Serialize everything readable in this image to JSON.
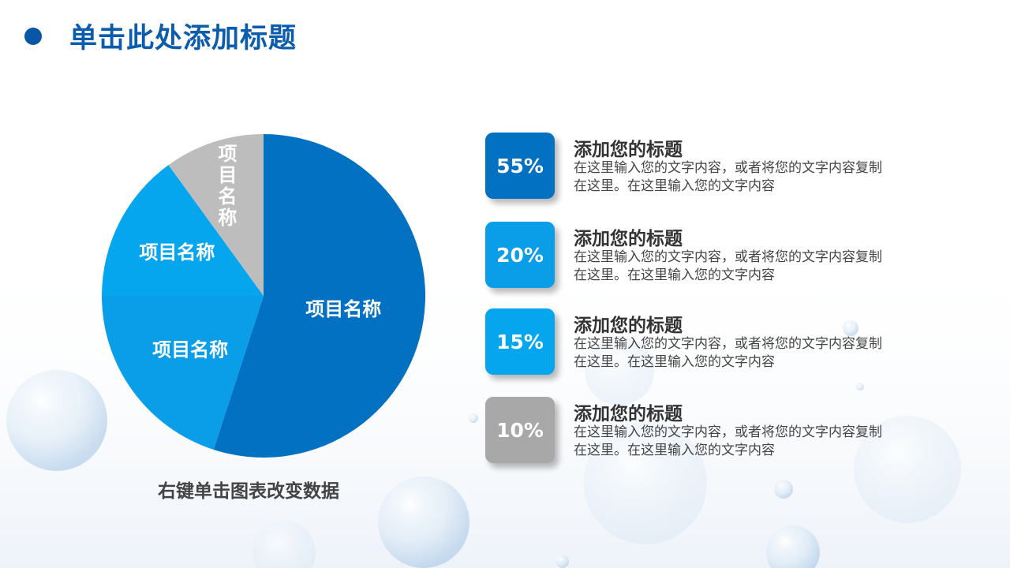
{
  "page": {
    "title": "单击此处添加标题"
  },
  "chart_data": {
    "type": "pie",
    "categories": [
      "项目名称",
      "项目名称",
      "项目名称",
      "项目名称"
    ],
    "values": [
      55,
      20,
      15,
      10
    ],
    "colors": [
      "#0271c1",
      "#0a9de8",
      "#05a6ee",
      "#bdbdbd"
    ],
    "start_angle_deg": 0,
    "direction": "clockwise",
    "caption": "右键单击图表改变数据"
  },
  "items": [
    {
      "percent": "55%",
      "title": "添加您的标题",
      "desc": "在这里输入您的文字内容，或者将您的文字内容复制在这里。在这里输入您的文字内容",
      "color": "#0271c1"
    },
    {
      "percent": "20%",
      "title": "添加您的标题",
      "desc": "在这里输入您的文字内容，或者将您的文字内容复制在这里。在这里输入您的文字内容",
      "color": "#0a9de8"
    },
    {
      "percent": "15%",
      "title": "添加您的标题",
      "desc": "在这里输入您的文字内容，或者将您的文字内容复制在这里。在这里输入您的文字内容",
      "color": "#05a6ee"
    },
    {
      "percent": "10%",
      "title": "添加您的标题",
      "desc": "在这里输入您的文字内容，或者将您的文字内容复制在这里。在这里输入您的文字内容",
      "color": "#a8a8a8"
    }
  ]
}
